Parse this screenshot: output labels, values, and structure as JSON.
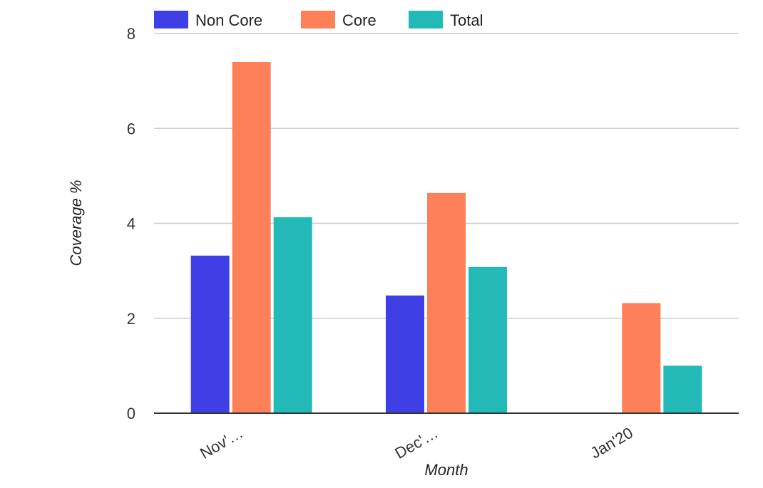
{
  "chart_data": {
    "type": "bar",
    "categories": [
      "Nov'…",
      "Dec'…",
      "Jan'20"
    ],
    "series": [
      {
        "name": "Non Core",
        "color": "#3f3fe6",
        "values": [
          3.32,
          2.48,
          0
        ]
      },
      {
        "name": "Core",
        "color": "#fe8058",
        "values": [
          7.4,
          4.64,
          2.32
        ]
      },
      {
        "name": "Total",
        "color": "#22b9b6",
        "values": [
          4.13,
          3.08,
          1.0
        ]
      }
    ],
    "title": "",
    "xlabel": "Month",
    "ylabel": "Coverage %",
    "ylim": [
      0,
      8
    ],
    "yticks": [
      0,
      2,
      4,
      6,
      8
    ],
    "grid": true,
    "legend_position": "top-left"
  }
}
